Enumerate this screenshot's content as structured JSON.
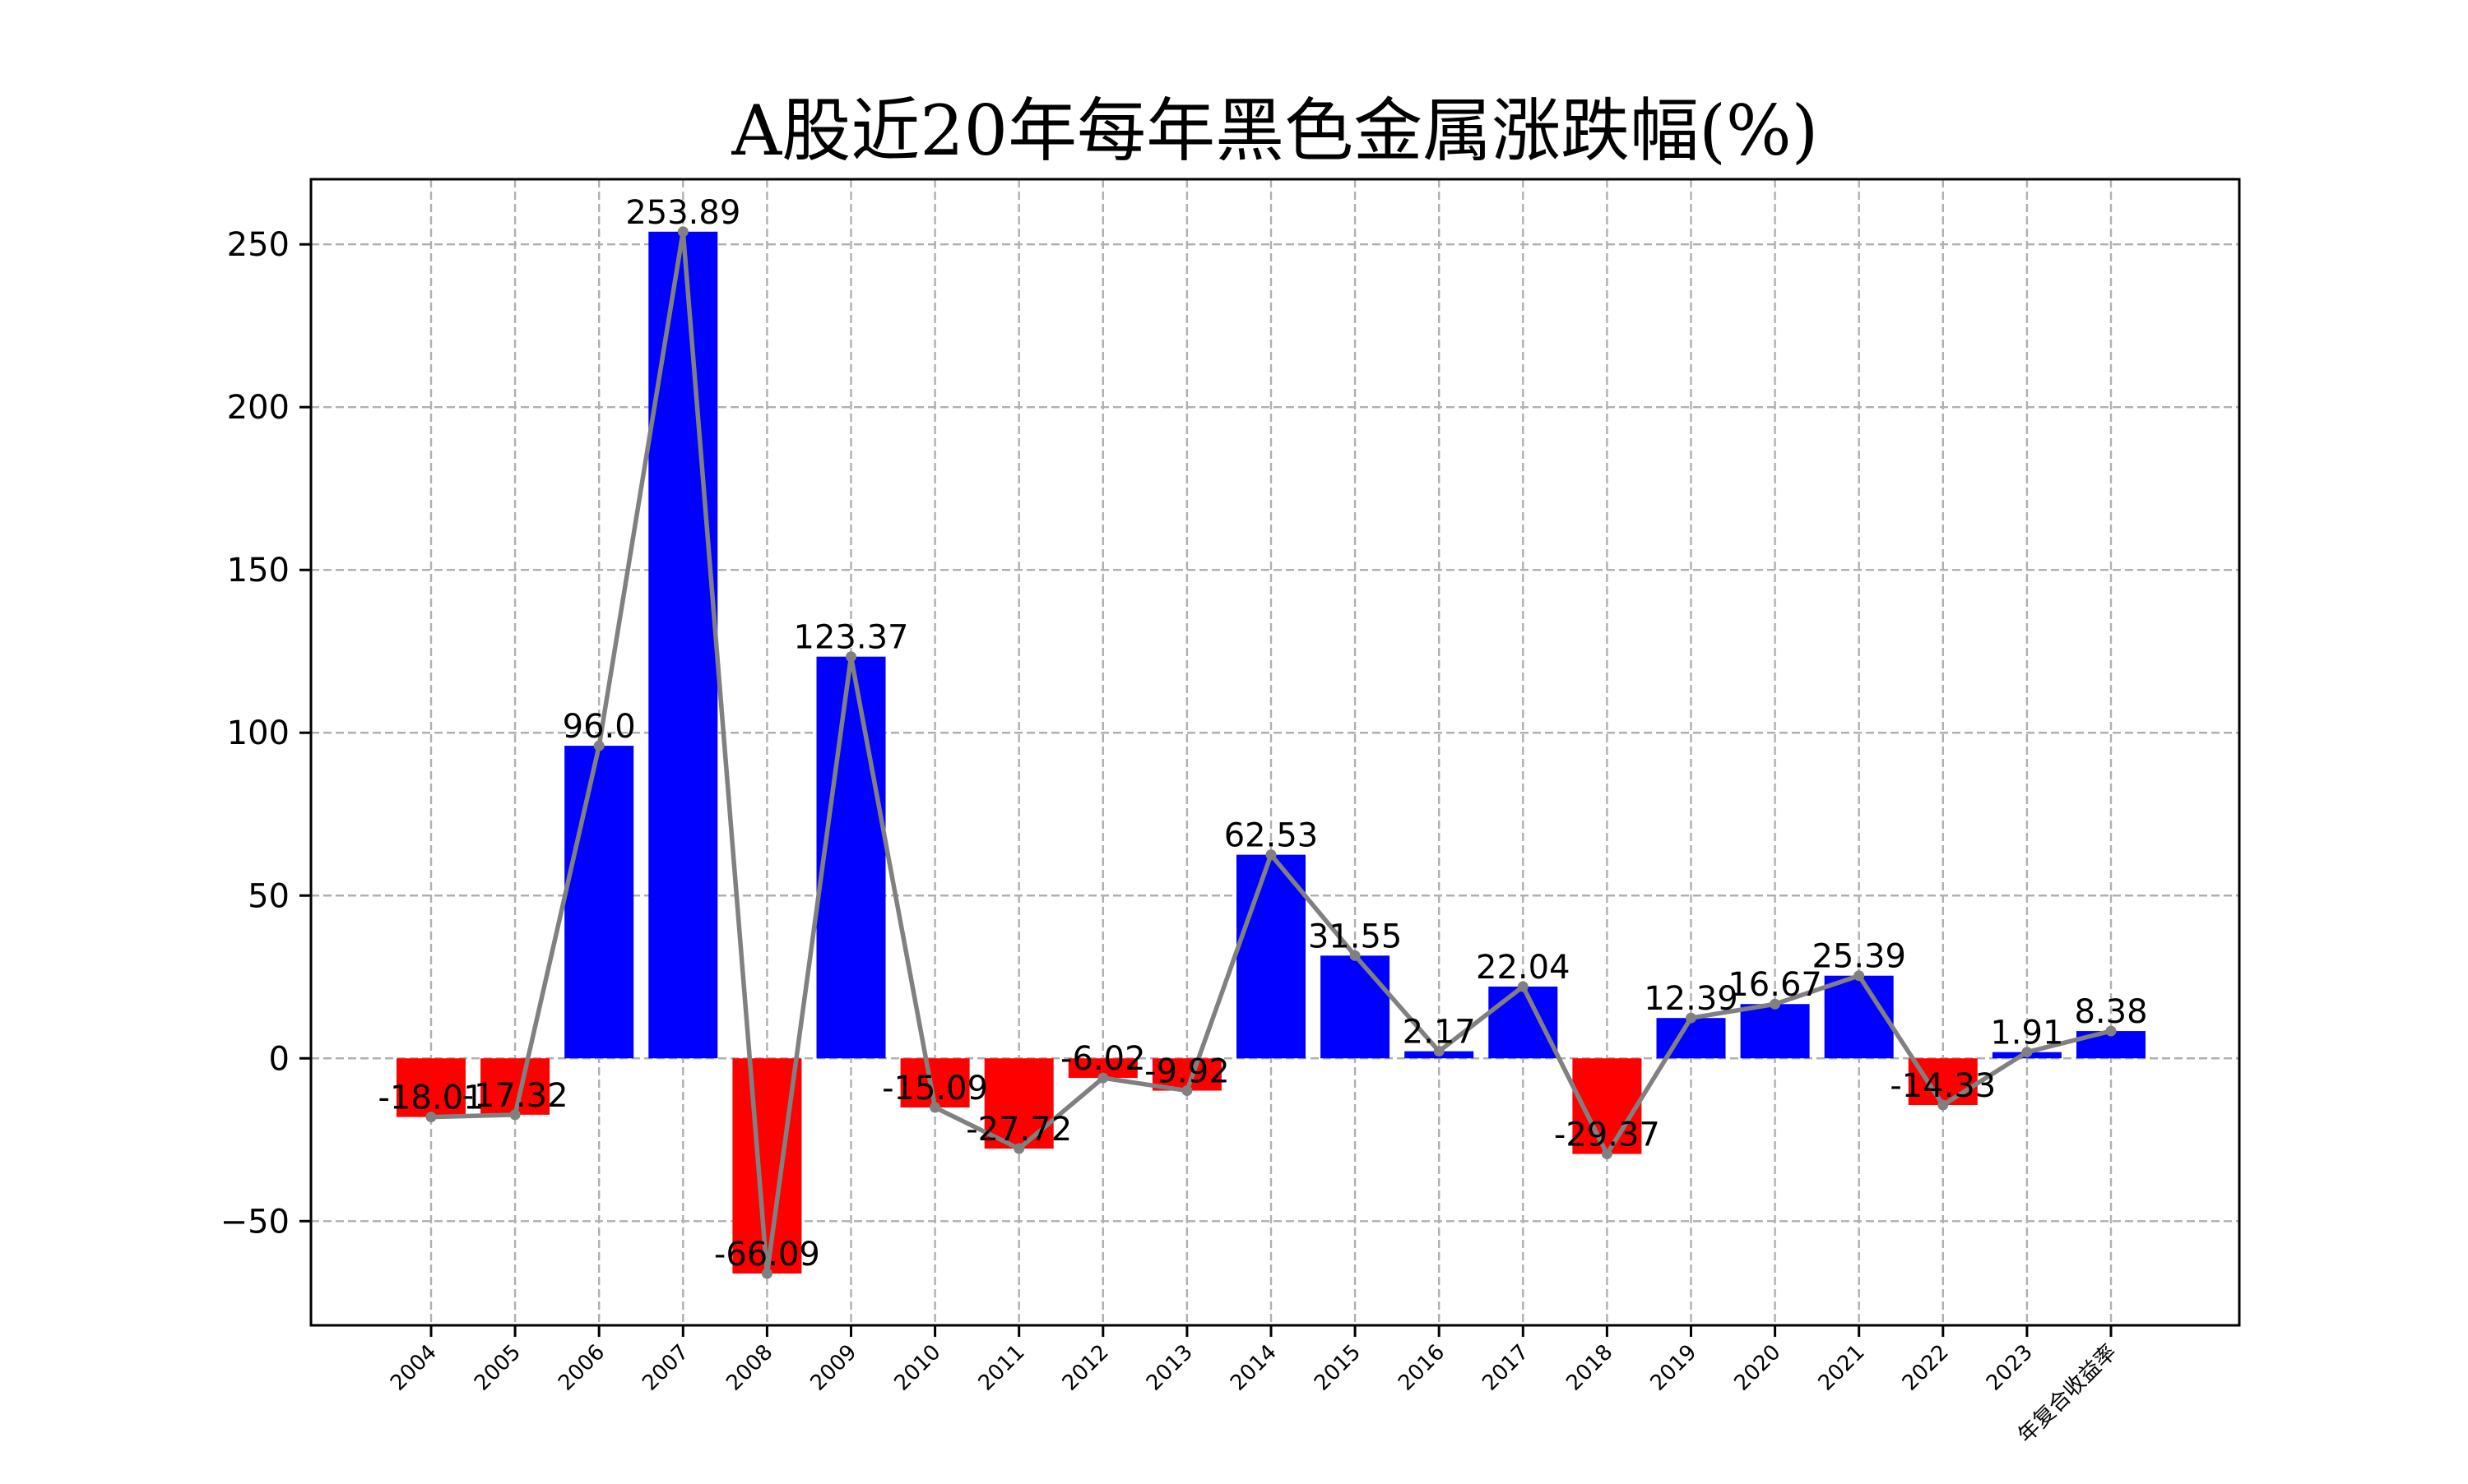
{
  "chart_data": {
    "type": "bar",
    "title": "A股近20年每年黑色金属涨跌幅(%)",
    "xlabel": "",
    "ylabel": "",
    "categories": [
      "2004",
      "2005",
      "2006",
      "2007",
      "2008",
      "2009",
      "2010",
      "2011",
      "2012",
      "2013",
      "2014",
      "2015",
      "2016",
      "2017",
      "2018",
      "2019",
      "2020",
      "2021",
      "2022",
      "2023",
      "年复合收益率"
    ],
    "values": [
      -18.01,
      -17.32,
      96.0,
      253.89,
      -66.09,
      123.37,
      -15.09,
      -27.72,
      -6.02,
      -9.92,
      62.53,
      31.55,
      2.17,
      22.04,
      -29.37,
      12.39,
      16.67,
      25.39,
      -14.33,
      1.91,
      8.38
    ],
    "value_labels": [
      "-18.01",
      "-17.32",
      "96.0",
      "253.89",
      "-66.09",
      "123.37",
      "-15.09",
      "-27.72",
      "-6.02",
      "-9.92",
      "62.53",
      "31.55",
      "2.17",
      "22.04",
      "-29.37",
      "12.39",
      "16.67",
      "25.39",
      "-14.33",
      "1.91",
      "8.38"
    ],
    "line_overlay": true,
    "ylim": [
      -82,
      270
    ],
    "yticks": [
      -50,
      0,
      50,
      100,
      150,
      200,
      250
    ],
    "ytick_labels": [
      "−50",
      "0",
      "50",
      "100",
      "150",
      "200",
      "250"
    ],
    "grid": true,
    "legend": "none",
    "colors": {
      "positive": "#0000ff",
      "negative": "#ff0000",
      "line": "#808080",
      "grid": "#b0b0b0",
      "axis": "#000000"
    }
  }
}
